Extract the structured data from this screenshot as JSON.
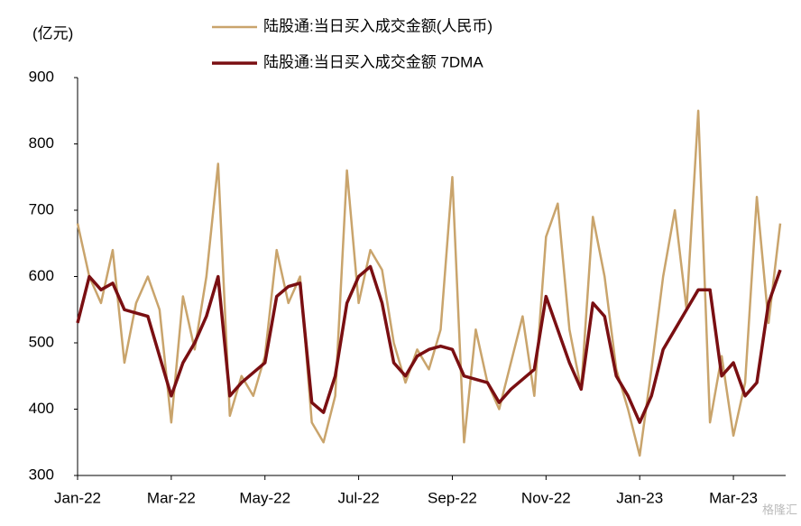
{
  "chart_data": {
    "type": "line",
    "y_label": "(亿元)",
    "watermark": "格隆汇",
    "categories": [
      "Jan-22",
      null,
      null,
      null,
      null,
      null,
      null,
      null,
      "Mar-22",
      null,
      null,
      null,
      null,
      null,
      null,
      null,
      "May-22",
      null,
      null,
      null,
      null,
      null,
      null,
      null,
      "Jul-22",
      null,
      null,
      null,
      null,
      null,
      null,
      null,
      "Sep-22",
      null,
      null,
      null,
      null,
      null,
      null,
      null,
      "Nov-22",
      null,
      null,
      null,
      null,
      null,
      null,
      null,
      "Jan-23",
      null,
      null,
      null,
      null,
      null,
      null,
      null,
      "Mar-23",
      null,
      null,
      null,
      null
    ],
    "series": [
      {
        "name": "陆股通:当日买入成交金额(人民币)",
        "color": "#c9a46c",
        "width": 2.5,
        "values": [
          680,
          600,
          560,
          640,
          470,
          560,
          600,
          550,
          380,
          570,
          490,
          600,
          770,
          390,
          450,
          420,
          480,
          640,
          560,
          600,
          380,
          350,
          420,
          760,
          560,
          640,
          610,
          500,
          440,
          490,
          460,
          520,
          750,
          350,
          520,
          440,
          400,
          470,
          540,
          420,
          660,
          710,
          520,
          430,
          690,
          600,
          460,
          400,
          330,
          460,
          600,
          700,
          550,
          850,
          380,
          480,
          360,
          440,
          720,
          530,
          680
        ]
      },
      {
        "name": "陆股通:当日买入成交金额 7DMA",
        "color": "#7a0f12",
        "width": 3.5,
        "values": [
          530,
          600,
          580,
          590,
          550,
          545,
          540,
          480,
          420,
          470,
          500,
          540,
          600,
          420,
          440,
          455,
          470,
          570,
          585,
          590,
          410,
          395,
          450,
          560,
          600,
          615,
          560,
          470,
          450,
          480,
          490,
          495,
          490,
          450,
          445,
          440,
          410,
          430,
          445,
          460,
          570,
          520,
          470,
          430,
          560,
          540,
          450,
          420,
          380,
          420,
          490,
          520,
          550,
          580,
          580,
          450,
          470,
          420,
          440,
          560,
          610
        ]
      }
    ],
    "ylim": [
      300,
      900
    ],
    "yticks": [
      300,
      400,
      500,
      600,
      700,
      800,
      900
    ],
    "grid": false
  }
}
